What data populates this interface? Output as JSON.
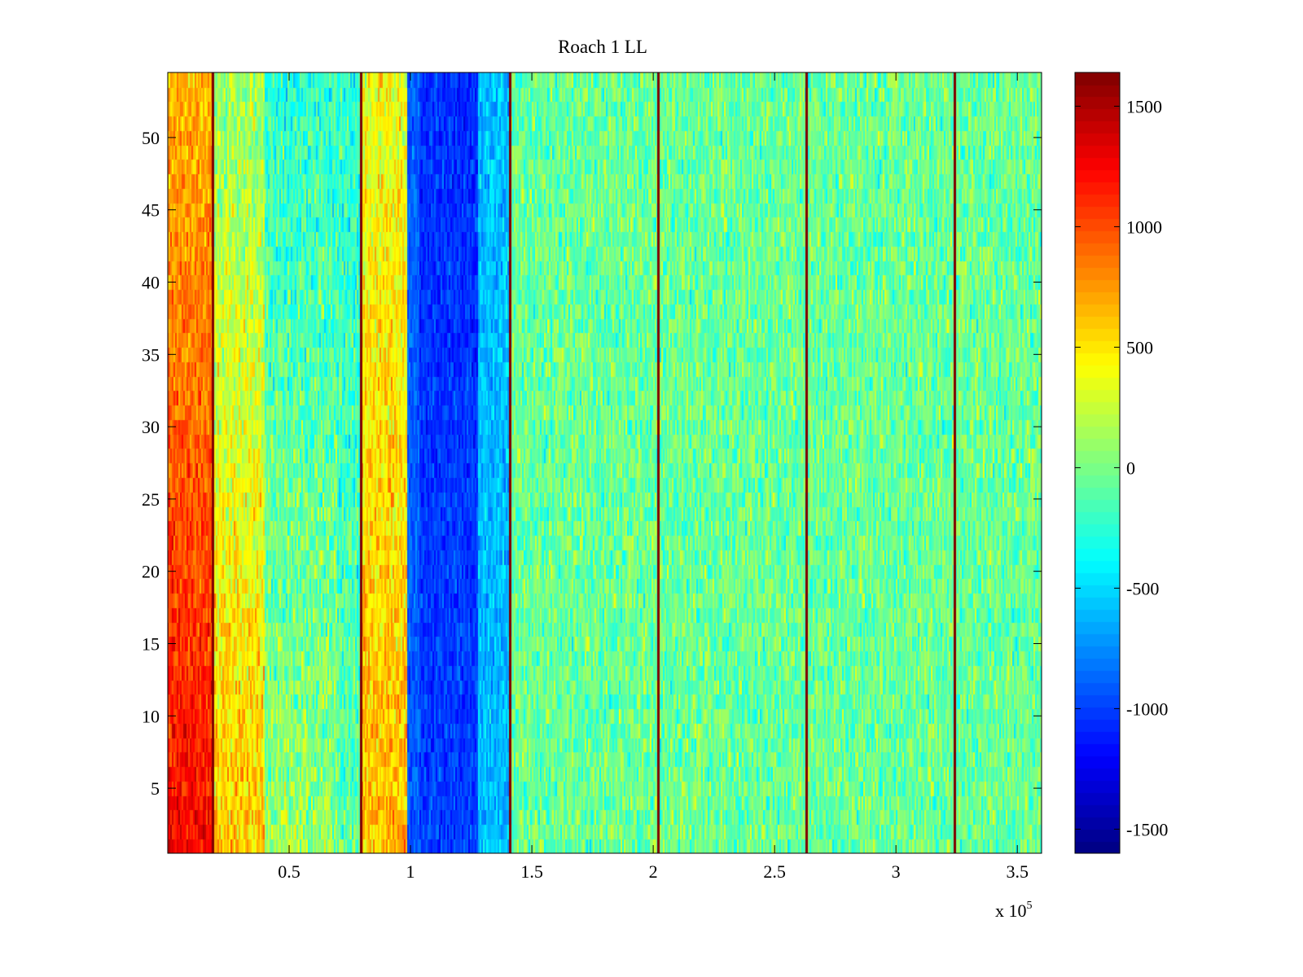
{
  "chart_data": {
    "type": "heatmap",
    "title": "Roach 1 LL",
    "xlabel": "",
    "ylabel": "",
    "x_multiplier": {
      "prefix": "x 10",
      "exponent": "5"
    },
    "xlim": [
      0,
      360000
    ],
    "ylim": [
      0.5,
      54.5
    ],
    "x_ticks": [
      {
        "value": 50000,
        "label": "0.5"
      },
      {
        "value": 100000,
        "label": "1"
      },
      {
        "value": 150000,
        "label": "1.5"
      },
      {
        "value": 200000,
        "label": "2"
      },
      {
        "value": 250000,
        "label": "2.5"
      },
      {
        "value": 300000,
        "label": "3"
      },
      {
        "value": 350000,
        "label": "3.5"
      }
    ],
    "y_ticks": [
      {
        "value": 5,
        "label": "5"
      },
      {
        "value": 10,
        "label": "10"
      },
      {
        "value": 15,
        "label": "15"
      },
      {
        "value": 20,
        "label": "20"
      },
      {
        "value": 25,
        "label": "25"
      },
      {
        "value": 30,
        "label": "30"
      },
      {
        "value": 35,
        "label": "35"
      },
      {
        "value": 40,
        "label": "40"
      },
      {
        "value": 45,
        "label": "45"
      },
      {
        "value": 50,
        "label": "50"
      }
    ],
    "colorbar": {
      "colormap": "jet",
      "clim": [
        -1600,
        1640
      ],
      "ticks": [
        {
          "value": 1500,
          "label": "1500"
        },
        {
          "value": 1000,
          "label": "1000"
        },
        {
          "value": 500,
          "label": "500"
        },
        {
          "value": 0,
          "label": "0"
        },
        {
          "value": -500,
          "label": "-500"
        },
        {
          "value": -1000,
          "label": "-1000"
        },
        {
          "value": -1500,
          "label": "-1500"
        }
      ]
    },
    "rows": 54,
    "x_segments": [
      {
        "x0": 0,
        "x1": 18500,
        "bottom": 1250,
        "top": 650,
        "noise": 230
      },
      {
        "x0": 18500,
        "x1": 40000,
        "bottom": 600,
        "top": 100,
        "noise": 280
      },
      {
        "x0": 40000,
        "x1": 70000,
        "bottom": 100,
        "top": -250,
        "noise": 300
      },
      {
        "x0": 70000,
        "x1": 80000,
        "bottom": -100,
        "top": -250,
        "noise": 300
      },
      {
        "x0": 80000,
        "x1": 99000,
        "bottom": 650,
        "top": 380,
        "noise": 270
      },
      {
        "x0": 99000,
        "x1": 104000,
        "bottom": -900,
        "top": -900,
        "noise": 160
      },
      {
        "x0": 104000,
        "x1": 128000,
        "bottom": -1000,
        "top": -1050,
        "noise": 170
      },
      {
        "x0": 128000,
        "x1": 141000,
        "bottom": -600,
        "top": -600,
        "noise": 200
      },
      {
        "x0": 141000,
        "x1": 360000,
        "bottom": -50,
        "top": -50,
        "noise": 270
      }
    ],
    "vertical_lines": {
      "x": [
        18500,
        79500,
        141000,
        202000,
        263000,
        324000
      ],
      "value": 1640
    }
  },
  "colors": {
    "axis": "#000000",
    "background": "#ffffff"
  }
}
